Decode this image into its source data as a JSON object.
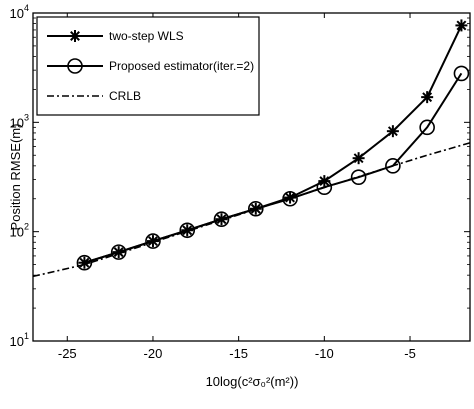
{
  "chart_data": {
    "type": "line",
    "title": "",
    "xlabel": "10log(c²σ₀²(m²))",
    "ylabel": "Position RMSE(m)",
    "xlim": [
      -27,
      -1.5
    ],
    "ylim": [
      10,
      10000
    ],
    "yscale": "log",
    "grid": false,
    "legend_position": "top-left",
    "xticks": [
      -25,
      -20,
      -15,
      -10,
      -5
    ],
    "xtick_labels": [
      "-25",
      "-20",
      "-15",
      "-10",
      "-5"
    ],
    "yticks": [
      10,
      100,
      1000,
      10000
    ],
    "ytick_labels": [
      {
        "base": "10",
        "exp": "1"
      },
      {
        "base": "10",
        "exp": "2"
      },
      {
        "base": "10",
        "exp": "3"
      },
      {
        "base": "10",
        "exp": "4"
      }
    ],
    "series": [
      {
        "name": "two-step WLS",
        "marker": "asterisk",
        "line": "solid",
        "color": "#000000",
        "x": [
          -24,
          -22,
          -20,
          -18,
          -16,
          -14,
          -12,
          -10,
          -8,
          -6,
          -4,
          -2
        ],
        "y": [
          52,
          65,
          82,
          103,
          130,
          162,
          205,
          290,
          470,
          830,
          1700,
          7700
        ]
      },
      {
        "name": "Proposed estimator(iter.=2)",
        "marker": "circle",
        "line": "solid",
        "color": "#000000",
        "x": [
          -24,
          -22,
          -20,
          -18,
          -16,
          -14,
          -12,
          -10,
          -8,
          -6,
          -4,
          -2
        ],
        "y": [
          52,
          65,
          82,
          103,
          130,
          162,
          200,
          255,
          315,
          400,
          900,
          2800
        ]
      },
      {
        "name": "CRLB",
        "marker": "none",
        "line": "dashdot",
        "color": "#000000",
        "x": [
          -27,
          -24,
          -22,
          -20,
          -18,
          -16,
          -14,
          -12,
          -10,
          -8,
          -6,
          -4,
          -1.5
        ],
        "y": [
          39,
          50,
          63,
          80,
          101,
          127,
          160,
          201,
          253,
          318,
          400,
          500,
          650
        ]
      }
    ]
  }
}
